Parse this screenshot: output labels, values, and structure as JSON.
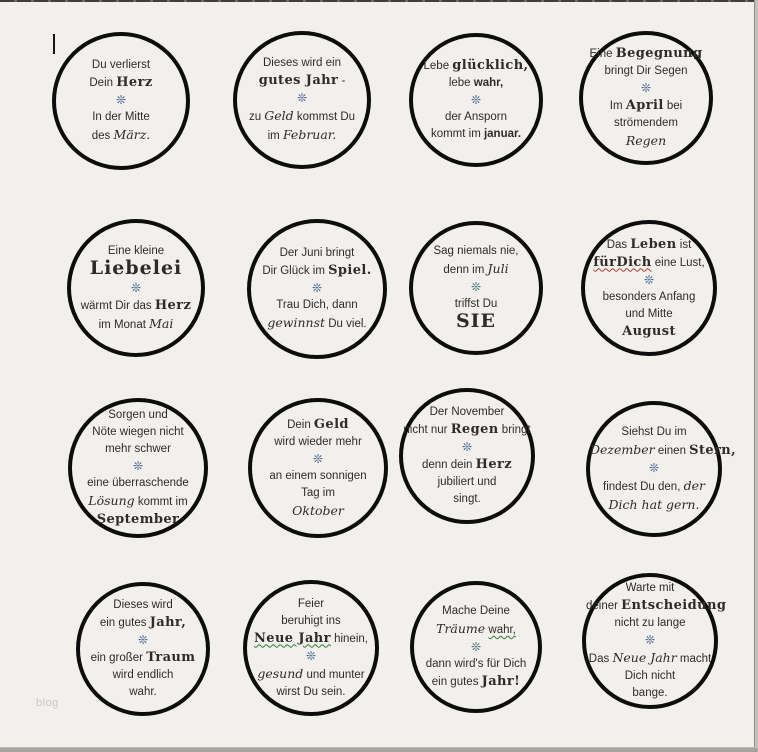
{
  "page": {
    "watermark": "blog",
    "ornament": "❊",
    "ornament_color": "#40608f",
    "background": "#f2f0ec",
    "circle_border_color": "#0d0d0d"
  },
  "circles": [
    {
      "id": "maerz",
      "top": [
        [
          {
            "t": "Du verlierst",
            "s": "n"
          }
        ],
        [
          {
            "t": "Dein ",
            "s": "n"
          },
          {
            "t": "Herz",
            "s": "f"
          }
        ]
      ],
      "bottom": [
        [
          {
            "t": "In der Mitte",
            "s": "n"
          }
        ],
        [
          {
            "t": "des ",
            "s": "n"
          },
          {
            "t": "März.",
            "s": "sc"
          }
        ]
      ]
    },
    {
      "id": "februar",
      "top": [
        [
          {
            "t": "Dieses wird ein",
            "s": "n"
          }
        ],
        [
          {
            "t": "gutes Jahr",
            "s": "f"
          },
          {
            "t": " -",
            "s": "n"
          }
        ]
      ],
      "bottom": [
        [
          {
            "t": "zu ",
            "s": "n"
          },
          {
            "t": "Geld",
            "s": "sc"
          },
          {
            "t": " kommst Du",
            "s": "n"
          }
        ],
        [
          {
            "t": "im ",
            "s": "n"
          },
          {
            "t": "Februar.",
            "s": "sc"
          }
        ]
      ]
    },
    {
      "id": "januar",
      "top": [
        [
          {
            "t": "Lebe ",
            "s": "n"
          },
          {
            "t": "glücklich,",
            "s": "f"
          }
        ],
        [
          {
            "t": "lebe ",
            "s": "n"
          },
          {
            "t": "wahr,",
            "s": "b"
          }
        ]
      ],
      "bottom": [
        [
          {
            "t": "der Ansporn",
            "s": "n"
          }
        ],
        [
          {
            "t": "kommt im ",
            "s": "n"
          },
          {
            "t": "januar.",
            "s": "b"
          }
        ]
      ]
    },
    {
      "id": "april",
      "top": [
        [
          {
            "t": "Eine ",
            "s": "n"
          },
          {
            "t": "Begegnung",
            "s": "f"
          }
        ],
        [
          {
            "t": "bringt Dir Segen",
            "s": "n"
          }
        ]
      ],
      "bottom": [
        [
          {
            "t": "Im ",
            "s": "n"
          },
          {
            "t": "April",
            "s": "f"
          },
          {
            "t": " bei",
            "s": "n"
          }
        ],
        [
          {
            "t": "strömendem",
            "s": "n"
          }
        ],
        [
          {
            "t": "Regen",
            "s": "sc"
          }
        ]
      ]
    },
    {
      "id": "mai",
      "top": [
        [
          {
            "t": "Eine kleine",
            "s": "n"
          }
        ],
        [
          {
            "t": "Liebelei",
            "s": "F"
          }
        ]
      ],
      "bottom": [
        [
          {
            "t": "wärmt Dir das ",
            "s": "n"
          },
          {
            "t": "Herz",
            "s": "f"
          }
        ],
        [
          {
            "t": "im Monat ",
            "s": "n"
          },
          {
            "t": "Mai",
            "s": "sc"
          }
        ]
      ]
    },
    {
      "id": "juni",
      "top": [
        [
          {
            "t": "Der Juni bringt",
            "s": "n"
          }
        ],
        [
          {
            "t": "Dir Glück im ",
            "s": "n"
          },
          {
            "t": "Spiel.",
            "s": "f"
          }
        ]
      ],
      "bottom": [
        [
          {
            "t": "Trau Dich, dann",
            "s": "n"
          }
        ],
        [
          {
            "t": "gewinnst",
            "s": "sc"
          },
          {
            "t": " Du viel.",
            "s": "n"
          }
        ]
      ]
    },
    {
      "id": "juli",
      "orn_color": "#3f6a78",
      "top": [
        [
          {
            "t": "Sag niemals nie,",
            "s": "n"
          }
        ],
        [
          {
            "t": "denn im ",
            "s": "n"
          },
          {
            "t": "Juli",
            "s": "sc"
          }
        ]
      ],
      "bottom": [
        [
          {
            "t": "triffst Du",
            "s": "n"
          }
        ],
        [
          {
            "t": "SIE",
            "s": "F"
          }
        ]
      ]
    },
    {
      "id": "august",
      "top": [
        [
          {
            "t": "Das ",
            "s": "n"
          },
          {
            "t": "Leben",
            "s": "f"
          },
          {
            "t": " ist",
            "s": "n"
          }
        ],
        [
          {
            "t": "fürDich",
            "s": "fu"
          },
          {
            "t": " eine Lust,",
            "s": "n"
          }
        ]
      ],
      "bottom": [
        [
          {
            "t": "besonders Anfang",
            "s": "n"
          }
        ],
        [
          {
            "t": "und Mitte",
            "s": "n"
          }
        ],
        [
          {
            "t": "August",
            "s": "f"
          }
        ]
      ]
    },
    {
      "id": "september",
      "top": [
        [
          {
            "t": "Sorgen und",
            "s": "n"
          }
        ],
        [
          {
            "t": "Nöte wiegen nicht",
            "s": "n"
          }
        ],
        [
          {
            "t": "mehr schwer",
            "s": "n"
          }
        ]
      ],
      "bottom": [
        [
          {
            "t": "eine überraschende",
            "s": "n"
          }
        ],
        [
          {
            "t": "Lösung",
            "s": "sc"
          },
          {
            "t": " kommt im",
            "s": "n"
          }
        ],
        [
          {
            "t": "September",
            "s": "f"
          }
        ]
      ]
    },
    {
      "id": "oktober",
      "top": [
        [
          {
            "t": "Dein ",
            "s": "n"
          },
          {
            "t": "Geld",
            "s": "f"
          }
        ],
        [
          {
            "t": "wird wieder mehr",
            "s": "n"
          }
        ]
      ],
      "bottom": [
        [
          {
            "t": "an einem sonnigen",
            "s": "n"
          }
        ],
        [
          {
            "t": "Tag im",
            "s": "n"
          }
        ],
        [
          {
            "t": "Oktober",
            "s": "sc"
          }
        ]
      ]
    },
    {
      "id": "november",
      "top": [
        [
          {
            "t": "Der November",
            "s": "n"
          }
        ],
        [
          {
            "t": "nicht nur ",
            "s": "n"
          },
          {
            "t": "Regen",
            "s": "f"
          },
          {
            "t": " bringt",
            "s": "n"
          }
        ]
      ],
      "bottom": [
        [
          {
            "t": "denn dein ",
            "s": "n"
          },
          {
            "t": "Herz",
            "s": "f"
          }
        ],
        [
          {
            "t": "jubiliert und",
            "s": "n"
          }
        ],
        [
          {
            "t": "singt.",
            "s": "n"
          }
        ]
      ]
    },
    {
      "id": "dezember",
      "top": [
        [
          {
            "t": "Siehst Du im",
            "s": "n"
          }
        ],
        [
          {
            "t": "Dezember",
            "s": "sc"
          },
          {
            "t": " einen ",
            "s": "n"
          },
          {
            "t": "Stern,",
            "s": "f"
          }
        ]
      ],
      "bottom": [
        [
          {
            "t": "findest Du den, ",
            "s": "n"
          },
          {
            "t": "der",
            "s": "sc"
          }
        ],
        [
          {
            "t": "Dich hat gern.",
            "s": "sc"
          }
        ]
      ]
    },
    {
      "id": "neujahr-1",
      "top": [
        [
          {
            "t": "Dieses wird",
            "s": "n"
          }
        ],
        [
          {
            "t": "ein gutes ",
            "s": "n"
          },
          {
            "t": "Jahr,",
            "s": "f"
          }
        ]
      ],
      "bottom": [
        [
          {
            "t": "ein großer ",
            "s": "n"
          },
          {
            "t": "Traum",
            "s": "f"
          }
        ],
        [
          {
            "t": "wird endlich",
            "s": "n"
          }
        ],
        [
          {
            "t": "wahr.",
            "s": "n"
          }
        ]
      ]
    },
    {
      "id": "neujahr-2",
      "top": [
        [
          {
            "t": "Feier",
            "s": "n"
          }
        ],
        [
          {
            "t": "beruhigt ins",
            "s": "n"
          }
        ],
        [
          {
            "t": "Neue Jahr",
            "s": "gu"
          },
          {
            "t": " hinein,",
            "s": "n"
          }
        ]
      ],
      "bottom": [
        [
          {
            "t": "gesund",
            "s": "sc"
          },
          {
            "t": " und munter",
            "s": "n"
          }
        ],
        [
          {
            "t": "wirst Du sein.",
            "s": "n"
          }
        ]
      ]
    },
    {
      "id": "neujahr-3",
      "orn_color": "#3f6a78",
      "top": [
        [
          {
            "t": "Mache Deine",
            "s": "n"
          }
        ],
        [
          {
            "t": "Träume",
            "s": "sc"
          },
          {
            "t": " ",
            "s": "n"
          },
          {
            "t": "wahr,",
            "s": "nu"
          }
        ]
      ],
      "bottom": [
        [
          {
            "t": "dann wird's für Dich",
            "s": "n"
          }
        ],
        [
          {
            "t": "ein gutes ",
            "s": "n"
          },
          {
            "t": "Jahr!",
            "s": "f"
          }
        ]
      ]
    },
    {
      "id": "neujahr-4",
      "top": [
        [
          {
            "t": "Warte mit",
            "s": "n"
          }
        ],
        [
          {
            "t": "deiner ",
            "s": "n"
          },
          {
            "t": "Entscheidung",
            "s": "f"
          }
        ],
        [
          {
            "t": "nicht zu lange",
            "s": "n"
          }
        ]
      ],
      "bottom": [
        [
          {
            "t": "Das ",
            "s": "n"
          },
          {
            "t": "Neue Jahr",
            "s": "sc"
          },
          {
            "t": " macht",
            "s": "n"
          }
        ],
        [
          {
            "t": "Dich nicht",
            "s": "n"
          }
        ],
        [
          {
            "t": "bange.",
            "s": "n"
          }
        ]
      ]
    }
  ]
}
